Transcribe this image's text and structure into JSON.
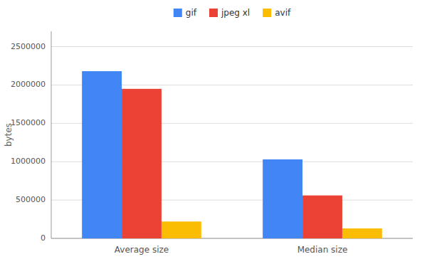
{
  "chart_data": {
    "type": "bar",
    "categories": [
      "Average size",
      "Median size"
    ],
    "series": [
      {
        "name": "gif",
        "color": "#4285F4",
        "values": [
          2180000,
          1030000
        ]
      },
      {
        "name": "jpeg xl",
        "color": "#EA4335",
        "values": [
          1950000,
          560000
        ]
      },
      {
        "name": "avif",
        "color": "#FBBC04",
        "values": [
          220000,
          130000
        ]
      }
    ],
    "ylabel": "bytes",
    "ylim": [
      0,
      2700000
    ],
    "yticks": [
      0,
      500000,
      1000000,
      1500000,
      2000000,
      2500000
    ],
    "grid": true,
    "legend": "top"
  }
}
